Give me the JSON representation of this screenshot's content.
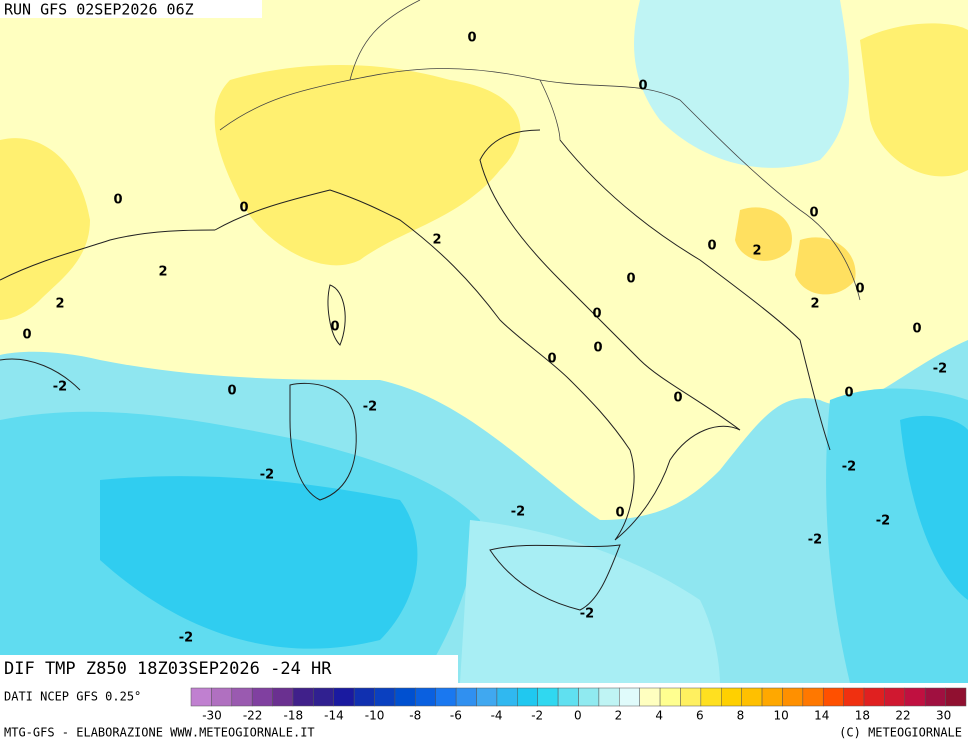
{
  "header": {
    "run": "RUN GFS 02SEP2026 06Z"
  },
  "map": {
    "contour_labels": [
      "0",
      "0",
      "0",
      "0",
      "0",
      "2",
      "0",
      "2",
      "2",
      "0",
      "0",
      "2",
      "2",
      "0",
      "0",
      "0",
      "0",
      "0",
      "0",
      "-2",
      "-2",
      "0",
      "0",
      "0",
      "-2",
      "-2",
      "-2",
      "-2",
      "0",
      "-2",
      "-2",
      "-2",
      "-2"
    ]
  },
  "product": {
    "title": "DIF TMP Z850 18Z03SEP2026 -24 HR",
    "source": "DATI NCEP GFS 0.25°"
  },
  "colorbar": {
    "ticks": [
      -30,
      -22,
      -18,
      -14,
      -10,
      -8,
      -6,
      -4,
      -2,
      0,
      2,
      4,
      6,
      8,
      10,
      14,
      18,
      22,
      30
    ],
    "colors": [
      "#c080d0",
      "#b070c0",
      "#9a5ab0",
      "#8040a0",
      "#6a3090",
      "#40208a",
      "#302090",
      "#1a1aa0",
      "#1030b0",
      "#0a40c0",
      "#0050d0",
      "#0a60e0",
      "#1a78f0",
      "#3090f0",
      "#40a8f0",
      "#30b8f0",
      "#20c8f0",
      "#30d8f0",
      "#60e0f0",
      "#90eaf0",
      "#bff4f4",
      "#e0fbfb",
      "#ffffc0",
      "#ffff90",
      "#fff060",
      "#ffe020",
      "#ffd000",
      "#ffc000",
      "#ffa800",
      "#ff9000",
      "#ff7800",
      "#ff5000",
      "#f03010",
      "#e02020",
      "#d01830",
      "#c01040",
      "#a01040",
      "#901030"
    ]
  },
  "footer": {
    "left": "MTG-GFS - ELABORAZIONE WWW.METEOGIORNALE.IT",
    "right": "(C) METEOGIORNALE"
  }
}
